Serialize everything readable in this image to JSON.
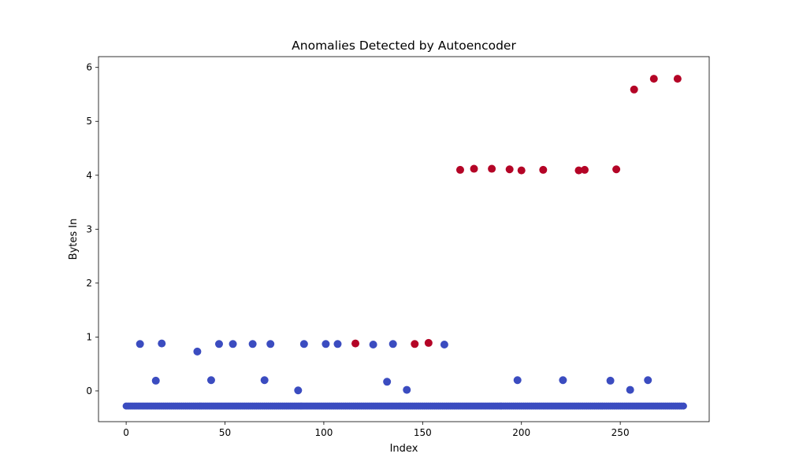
{
  "chart_data": {
    "type": "scatter",
    "title": "Anomalies Detected by Autoencoder",
    "xlabel": "Index",
    "ylabel": "Bytes In",
    "xlim": [
      -14,
      295
    ],
    "ylim": [
      -0.57,
      6.2
    ],
    "x_ticks": [
      0,
      50,
      100,
      150,
      200,
      250
    ],
    "y_ticks": [
      0,
      1,
      2,
      3,
      4,
      5,
      6
    ],
    "grid": false,
    "colors": {
      "normal": "#3b4cc0",
      "anomaly": "#b40426"
    },
    "baseline": {
      "y": -0.28,
      "x_start": 0,
      "x_end": 282,
      "color": "normal"
    },
    "points": [
      {
        "x": 7,
        "y": 0.87,
        "c": "normal"
      },
      {
        "x": 18,
        "y": 0.88,
        "c": "normal"
      },
      {
        "x": 15,
        "y": 0.19,
        "c": "normal"
      },
      {
        "x": 36,
        "y": 0.73,
        "c": "normal"
      },
      {
        "x": 43,
        "y": 0.2,
        "c": "normal"
      },
      {
        "x": 47,
        "y": 0.87,
        "c": "normal"
      },
      {
        "x": 54,
        "y": 0.87,
        "c": "normal"
      },
      {
        "x": 64,
        "y": 0.87,
        "c": "normal"
      },
      {
        "x": 70,
        "y": 0.2,
        "c": "normal"
      },
      {
        "x": 73,
        "y": 0.87,
        "c": "normal"
      },
      {
        "x": 87,
        "y": 0.01,
        "c": "normal"
      },
      {
        "x": 90,
        "y": 0.87,
        "c": "normal"
      },
      {
        "x": 101,
        "y": 0.87,
        "c": "normal"
      },
      {
        "x": 107,
        "y": 0.87,
        "c": "normal"
      },
      {
        "x": 116,
        "y": 0.88,
        "c": "anomaly"
      },
      {
        "x": 125,
        "y": 0.86,
        "c": "normal"
      },
      {
        "x": 132,
        "y": 0.17,
        "c": "normal"
      },
      {
        "x": 135,
        "y": 0.87,
        "c": "normal"
      },
      {
        "x": 142,
        "y": 0.02,
        "c": "normal"
      },
      {
        "x": 146,
        "y": 0.87,
        "c": "anomaly"
      },
      {
        "x": 153,
        "y": 0.89,
        "c": "anomaly"
      },
      {
        "x": 161,
        "y": 0.86,
        "c": "normal"
      },
      {
        "x": 169,
        "y": 4.1,
        "c": "anomaly"
      },
      {
        "x": 176,
        "y": 4.12,
        "c": "anomaly"
      },
      {
        "x": 185,
        "y": 4.12,
        "c": "anomaly"
      },
      {
        "x": 194,
        "y": 4.11,
        "c": "anomaly"
      },
      {
        "x": 198,
        "y": 0.2,
        "c": "normal"
      },
      {
        "x": 200,
        "y": 4.09,
        "c": "anomaly"
      },
      {
        "x": 211,
        "y": 4.1,
        "c": "anomaly"
      },
      {
        "x": 221,
        "y": 0.2,
        "c": "normal"
      },
      {
        "x": 229,
        "y": 4.09,
        "c": "anomaly"
      },
      {
        "x": 232,
        "y": 4.1,
        "c": "anomaly"
      },
      {
        "x": 245,
        "y": 0.19,
        "c": "normal"
      },
      {
        "x": 248,
        "y": 4.11,
        "c": "anomaly"
      },
      {
        "x": 255,
        "y": 0.02,
        "c": "normal"
      },
      {
        "x": 257,
        "y": 5.59,
        "c": "anomaly"
      },
      {
        "x": 264,
        "y": 0.2,
        "c": "normal"
      },
      {
        "x": 267,
        "y": 5.79,
        "c": "anomaly"
      },
      {
        "x": 279,
        "y": 5.79,
        "c": "anomaly"
      }
    ]
  }
}
